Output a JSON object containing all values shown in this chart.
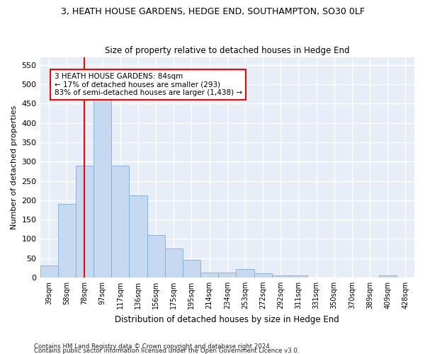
{
  "title": "3, HEATH HOUSE GARDENS, HEDGE END, SOUTHAMPTON, SO30 0LF",
  "subtitle": "Size of property relative to detached houses in Hedge End",
  "xlabel": "Distribution of detached houses by size in Hedge End",
  "ylabel": "Number of detached properties",
  "bar_color": "#c6d9f0",
  "bar_edge_color": "#7aaed6",
  "categories": [
    "39sqm",
    "58sqm",
    "78sqm",
    "97sqm",
    "117sqm",
    "136sqm",
    "156sqm",
    "175sqm",
    "195sqm",
    "214sqm",
    "234sqm",
    "253sqm",
    "272sqm",
    "292sqm",
    "311sqm",
    "331sqm",
    "350sqm",
    "370sqm",
    "389sqm",
    "409sqm",
    "428sqm"
  ],
  "values": [
    30,
    190,
    290,
    460,
    290,
    213,
    110,
    75,
    46,
    13,
    12,
    21,
    10,
    5,
    5,
    0,
    0,
    0,
    0,
    5,
    0
  ],
  "ylim": [
    0,
    570
  ],
  "yticks": [
    0,
    50,
    100,
    150,
    200,
    250,
    300,
    350,
    400,
    450,
    500,
    550
  ],
  "vline_x": 2.0,
  "annotation_text": "3 HEATH HOUSE GARDENS: 84sqm\n← 17% of detached houses are smaller (293)\n83% of semi-detached houses are larger (1,438) →",
  "annotation_box_color": "white",
  "annotation_box_edge": "red",
  "vline_color": "red",
  "background_color": "#e8eef8",
  "grid_color": "white",
  "footnote1": "Contains HM Land Registry data © Crown copyright and database right 2024.",
  "footnote2": "Contains public sector information licensed under the Open Government Licence v3.0."
}
